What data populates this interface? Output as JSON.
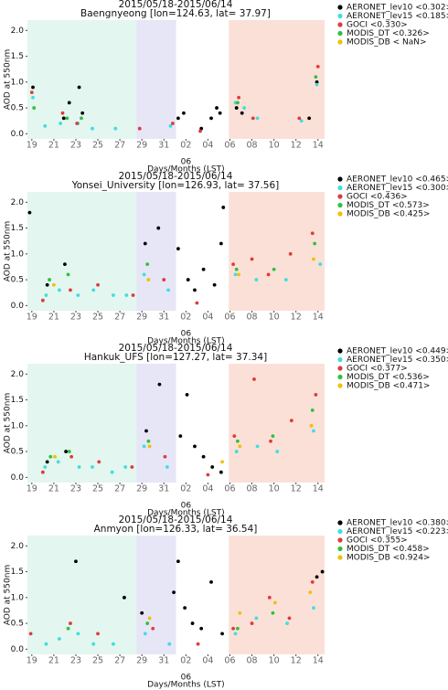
{
  "chart_data": [
    {
      "type": "scatter",
      "title": "2015/05/18-2015/06/14",
      "subtitle": "Baengnyeong [lon=124.63, lat= 37.97]",
      "ylabel": "AOD at 550nm",
      "xlabel": "Days/Months (LST)",
      "annotation": {
        "x": 15,
        "text": "06"
      },
      "xlim": [
        0.6,
        27.6
      ],
      "ylim": [
        -0.1,
        2.2
      ],
      "yticks": [
        {
          "value": 0,
          "label": "0.0"
        },
        {
          "value": 0.5,
          "label": "0.5"
        },
        {
          "value": 1,
          "label": "1.0"
        },
        {
          "value": 1.5,
          "label": "1.5"
        },
        {
          "value": 2,
          "label": "2.0"
        }
      ],
      "xticks": [
        {
          "value": 1,
          "label": "19"
        },
        {
          "value": 3,
          "label": "21"
        },
        {
          "value": 5,
          "label": "23"
        },
        {
          "value": 7,
          "label": "25"
        },
        {
          "value": 9,
          "label": "27"
        },
        {
          "value": 11,
          "label": "29"
        },
        {
          "value": 13,
          "label": "31"
        },
        {
          "value": 15,
          "label": "02"
        },
        {
          "value": 17,
          "label": "04"
        },
        {
          "value": 19,
          "label": "06"
        },
        {
          "value": 21,
          "label": "08"
        },
        {
          "value": 23,
          "label": "10"
        },
        {
          "value": 25,
          "label": "12"
        },
        {
          "value": 27,
          "label": "14"
        }
      ],
      "spans": [
        {
          "from": 0.6,
          "to": 10.5,
          "color": "#e3f6ef"
        },
        {
          "from": 10.5,
          "to": 14.1,
          "color": "#e6e6f6"
        },
        {
          "from": 18.9,
          "to": 27.6,
          "color": "#fbe0d8"
        }
      ],
      "series": [
        {
          "name": "AERONET_lev10 <0.302>",
          "color": "#000000",
          "x": [
            1.1,
            3.9,
            4.4,
            5.3,
            5.6,
            14.3,
            14.8,
            16.4,
            17.3,
            17.8,
            18.1,
            19.6,
            20.1,
            26.2,
            26.9
          ],
          "values": [
            0.9,
            0.3,
            0.6,
            0.9,
            0.4,
            0.3,
            0.4,
            0.1,
            0.3,
            0.5,
            0.4,
            0.5,
            0.4,
            0.3,
            1.0
          ]
        },
        {
          "name": "AERONET_lev15 <0.185>",
          "color": "#40dede",
          "x": [
            1.1,
            2.2,
            3.6,
            5.2,
            6.5,
            8.6,
            13.6,
            19.5,
            20.3,
            21.5,
            25.5,
            26.9
          ],
          "values": [
            0.7,
            0.15,
            0.2,
            0.2,
            0.1,
            0.1,
            0.15,
            0.6,
            0.5,
            0.3,
            0.25,
            0.95
          ]
        },
        {
          "name": "GOCI <0.330>",
          "color": "#e03a3a",
          "x": [
            1.0,
            3.8,
            5.1,
            10.8,
            13.8,
            16.3,
            19.8,
            21.1,
            25.3,
            27.0
          ],
          "values": [
            0.8,
            0.4,
            0.2,
            0.1,
            0.2,
            0.05,
            0.7,
            0.3,
            0.3,
            1.3
          ]
        },
        {
          "name": "MODIS_DT <0.326>",
          "color": "#30c040",
          "x": [
            1.2,
            4.2,
            5.5,
            19.7,
            26.8
          ],
          "values": [
            0.5,
            0.3,
            0.3,
            0.6,
            1.1
          ]
        },
        {
          "name": "MODIS_DB < NaN>",
          "color": "#f0c000",
          "x": [],
          "values": []
        }
      ]
    },
    {
      "type": "scatter",
      "title": "2015/05/18-2015/06/14",
      "subtitle": "Yonsei_University [lon=126.93, lat= 37.56]",
      "ylabel": "AOD at 550nm",
      "xlabel": "Days/Months (LST)",
      "annotation": {
        "x": 15,
        "text": "06"
      },
      "xlim": [
        0.6,
        27.6
      ],
      "ylim": [
        -0.1,
        2.2
      ],
      "yticks": [
        {
          "value": 0,
          "label": "0.0"
        },
        {
          "value": 0.5,
          "label": "0.5"
        },
        {
          "value": 1,
          "label": "1.0"
        },
        {
          "value": 1.5,
          "label": "1.5"
        },
        {
          "value": 2,
          "label": "2.0"
        }
      ],
      "xticks": [
        {
          "value": 1,
          "label": "19"
        },
        {
          "value": 3,
          "label": "21"
        },
        {
          "value": 5,
          "label": "23"
        },
        {
          "value": 7,
          "label": "25"
        },
        {
          "value": 9,
          "label": "27"
        },
        {
          "value": 11,
          "label": "29"
        },
        {
          "value": 13,
          "label": "31"
        },
        {
          "value": 15,
          "label": "02"
        },
        {
          "value": 17,
          "label": "04"
        },
        {
          "value": 19,
          "label": "06"
        },
        {
          "value": 21,
          "label": "08"
        },
        {
          "value": 23,
          "label": "10"
        },
        {
          "value": 25,
          "label": "12"
        },
        {
          "value": 27,
          "label": "14"
        }
      ],
      "spans": [
        {
          "from": 0.6,
          "to": 10.5,
          "color": "#e3f6ef"
        },
        {
          "from": 10.5,
          "to": 14.1,
          "color": "#e6e6f6"
        },
        {
          "from": 18.9,
          "to": 27.6,
          "color": "#fbe0d8"
        }
      ],
      "series": [
        {
          "name": "AERONET_lev10 <0.465>",
          "color": "#000000",
          "x": [
            0.8,
            2.4,
            4.0,
            11.3,
            12.5,
            14.3,
            15.2,
            15.8,
            16.6,
            17.6,
            18.2,
            18.4
          ],
          "values": [
            1.8,
            0.4,
            0.8,
            1.2,
            1.5,
            1.1,
            0.5,
            0.3,
            0.7,
            0.4,
            1.2,
            1.9
          ]
        },
        {
          "name": "AERONET_lev15 <0.300>",
          "color": "#40dede",
          "x": [
            2.3,
            3.5,
            5.2,
            6.6,
            8.4,
            9.6,
            11.2,
            13.4,
            19.5,
            21.4,
            24.1,
            27.2
          ],
          "values": [
            0.2,
            0.3,
            0.2,
            0.3,
            0.2,
            0.2,
            0.6,
            0.3,
            0.6,
            0.5,
            0.5,
            0.8
          ]
        },
        {
          "name": "GOCI <0.436>",
          "color": "#e03a3a",
          "x": [
            2.0,
            4.5,
            7.0,
            10.2,
            13.0,
            16.0,
            19.3,
            21.0,
            22.5,
            24.5,
            26.5
          ],
          "values": [
            0.1,
            0.3,
            0.4,
            0.2,
            0.5,
            0.05,
            0.8,
            0.9,
            0.6,
            1.0,
            1.4
          ]
        },
        {
          "name": "MODIS_DT <0.573>",
          "color": "#30c040",
          "x": [
            2.6,
            4.3,
            11.5,
            19.6,
            23.0,
            26.7
          ],
          "values": [
            0.5,
            0.6,
            0.8,
            0.7,
            0.7,
            1.2
          ]
        },
        {
          "name": "MODIS_DB <0.425>",
          "color": "#f0c000",
          "x": [
            3.0,
            11.6,
            19.8,
            26.6
          ],
          "values": [
            0.4,
            0.5,
            0.6,
            0.9
          ]
        }
      ]
    },
    {
      "type": "scatter",
      "title": "2015/05/18-2015/06/14",
      "subtitle": "Hankuk_UFS [lon=127.27, lat= 37.34]",
      "ylabel": "AOD at 550nm",
      "xlabel": "Days/Months (LST)",
      "annotation": {
        "x": 15,
        "text": "06"
      },
      "xlim": [
        0.6,
        27.6
      ],
      "ylim": [
        -0.1,
        2.2
      ],
      "yticks": [
        {
          "value": 0,
          "label": "0.0"
        },
        {
          "value": 0.5,
          "label": "0.5"
        },
        {
          "value": 1,
          "label": "1.0"
        },
        {
          "value": 1.5,
          "label": "1.5"
        },
        {
          "value": 2,
          "label": "2.0"
        }
      ],
      "xticks": [
        {
          "value": 1,
          "label": "19"
        },
        {
          "value": 3,
          "label": "21"
        },
        {
          "value": 5,
          "label": "23"
        },
        {
          "value": 7,
          "label": "25"
        },
        {
          "value": 9,
          "label": "27"
        },
        {
          "value": 11,
          "label": "29"
        },
        {
          "value": 13,
          "label": "31"
        },
        {
          "value": 15,
          "label": "02"
        },
        {
          "value": 17,
          "label": "04"
        },
        {
          "value": 19,
          "label": "06"
        },
        {
          "value": 21,
          "label": "08"
        },
        {
          "value": 23,
          "label": "10"
        },
        {
          "value": 25,
          "label": "12"
        },
        {
          "value": 27,
          "label": "14"
        }
      ],
      "spans": [
        {
          "from": 0.6,
          "to": 10.5,
          "color": "#e3f6ef"
        },
        {
          "from": 10.5,
          "to": 14.1,
          "color": "#e6e6f6"
        },
        {
          "from": 18.9,
          "to": 27.6,
          "color": "#fbe0d8"
        }
      ],
      "series": [
        {
          "name": "AERONET_lev10 <0.449>",
          "color": "#000000",
          "x": [
            2.4,
            4.1,
            11.4,
            12.6,
            14.5,
            15.1,
            15.8,
            16.6,
            17.4,
            18.2
          ],
          "values": [
            0.3,
            0.5,
            0.9,
            1.8,
            0.8,
            1.6,
            0.6,
            0.4,
            0.2,
            0.1
          ]
        },
        {
          "name": "AERONET_lev15 <0.350>",
          "color": "#40dede",
          "x": [
            2.2,
            3.4,
            5.3,
            6.5,
            8.3,
            9.5,
            11.2,
            13.3,
            19.6,
            21.5,
            23.3,
            26.6
          ],
          "values": [
            0.2,
            0.3,
            0.2,
            0.2,
            0.1,
            0.2,
            0.6,
            0.2,
            0.5,
            0.6,
            0.5,
            0.9
          ]
        },
        {
          "name": "GOCI <0.377>",
          "color": "#e03a3a",
          "x": [
            2.0,
            4.6,
            7.1,
            10.1,
            13.1,
            17.0,
            19.4,
            21.2,
            22.7,
            24.6,
            26.8
          ],
          "values": [
            0.1,
            0.4,
            0.3,
            0.2,
            0.4,
            0.05,
            0.8,
            1.9,
            0.7,
            1.1,
            1.6
          ]
        },
        {
          "name": "MODIS_DT <0.536>",
          "color": "#30c040",
          "x": [
            2.7,
            4.4,
            11.6,
            19.7,
            22.9,
            26.5
          ],
          "values": [
            0.4,
            0.5,
            0.7,
            0.7,
            0.8,
            1.3
          ]
        },
        {
          "name": "MODIS_DB <0.471>",
          "color": "#f0c000",
          "x": [
            3.1,
            11.7,
            18.3,
            19.9,
            26.4
          ],
          "values": [
            0.4,
            0.6,
            0.3,
            0.6,
            1.0
          ]
        }
      ]
    },
    {
      "type": "scatter",
      "title": "2015/05/18-2015/06/14",
      "subtitle": "Anmyon [lon=126.33, lat= 36.54]",
      "ylabel": "AOD at 550nm",
      "xlabel": "Days/Months (LST)",
      "annotation": {
        "x": 15,
        "text": "06"
      },
      "xlim": [
        0.6,
        27.6
      ],
      "ylim": [
        -0.1,
        2.2
      ],
      "yticks": [
        {
          "value": 0,
          "label": "0.0"
        },
        {
          "value": 0.5,
          "label": "0.5"
        },
        {
          "value": 1,
          "label": "1.0"
        },
        {
          "value": 1.5,
          "label": "1.5"
        },
        {
          "value": 2,
          "label": "2.0"
        }
      ],
      "xticks": [
        {
          "value": 1,
          "label": "19"
        },
        {
          "value": 3,
          "label": "21"
        },
        {
          "value": 5,
          "label": "23"
        },
        {
          "value": 7,
          "label": "25"
        },
        {
          "value": 9,
          "label": "27"
        },
        {
          "value": 11,
          "label": "29"
        },
        {
          "value": 13,
          "label": "31"
        },
        {
          "value": 15,
          "label": "02"
        },
        {
          "value": 17,
          "label": "04"
        },
        {
          "value": 19,
          "label": "06"
        },
        {
          "value": 21,
          "label": "08"
        },
        {
          "value": 23,
          "label": "10"
        },
        {
          "value": 25,
          "label": "12"
        },
        {
          "value": 27,
          "label": "14"
        }
      ],
      "spans": [
        {
          "from": 0.6,
          "to": 10.5,
          "color": "#e3f6ef"
        },
        {
          "from": 10.5,
          "to": 14.1,
          "color": "#e6e6f6"
        },
        {
          "from": 18.9,
          "to": 27.6,
          "color": "#fbe0d8"
        }
      ],
      "series": [
        {
          "name": "AERONET_lev10 <0.380>",
          "color": "#000000",
          "x": [
            5.0,
            9.4,
            11.0,
            13.9,
            14.3,
            14.9,
            15.6,
            16.4,
            17.3,
            18.3,
            26.9,
            27.4
          ],
          "values": [
            1.7,
            1.0,
            0.7,
            1.1,
            1.7,
            0.8,
            0.5,
            0.4,
            1.3,
            0.3,
            1.4,
            1.5
          ]
        },
        {
          "name": "AERONET_lev15 <0.223>",
          "color": "#40dede",
          "x": [
            2.3,
            3.5,
            5.2,
            6.6,
            8.4,
            11.3,
            13.5,
            19.5,
            21.4,
            24.2,
            26.6
          ],
          "values": [
            0.1,
            0.2,
            0.3,
            0.1,
            0.1,
            0.3,
            0.1,
            0.3,
            0.6,
            0.5,
            0.8
          ]
        },
        {
          "name": "GOCI <0.355>",
          "color": "#e03a3a",
          "x": [
            0.9,
            4.5,
            7.0,
            12.0,
            16.1,
            19.3,
            21.0,
            22.6,
            24.4,
            26.5
          ],
          "values": [
            0.3,
            0.5,
            0.3,
            0.4,
            0.1,
            0.4,
            0.5,
            1.0,
            0.6,
            1.3
          ]
        },
        {
          "name": "MODIS_DT <0.458>",
          "color": "#30c040",
          "x": [
            4.3,
            11.5,
            19.7,
            22.9
          ],
          "values": [
            0.4,
            0.5,
            0.4,
            0.7
          ]
        },
        {
          "name": "MODIS_DB <0.924>",
          "color": "#f0c000",
          "x": [
            11.7,
            19.9,
            23.1,
            26.3
          ],
          "values": [
            0.6,
            0.7,
            0.9,
            1.1
          ]
        }
      ]
    }
  ]
}
